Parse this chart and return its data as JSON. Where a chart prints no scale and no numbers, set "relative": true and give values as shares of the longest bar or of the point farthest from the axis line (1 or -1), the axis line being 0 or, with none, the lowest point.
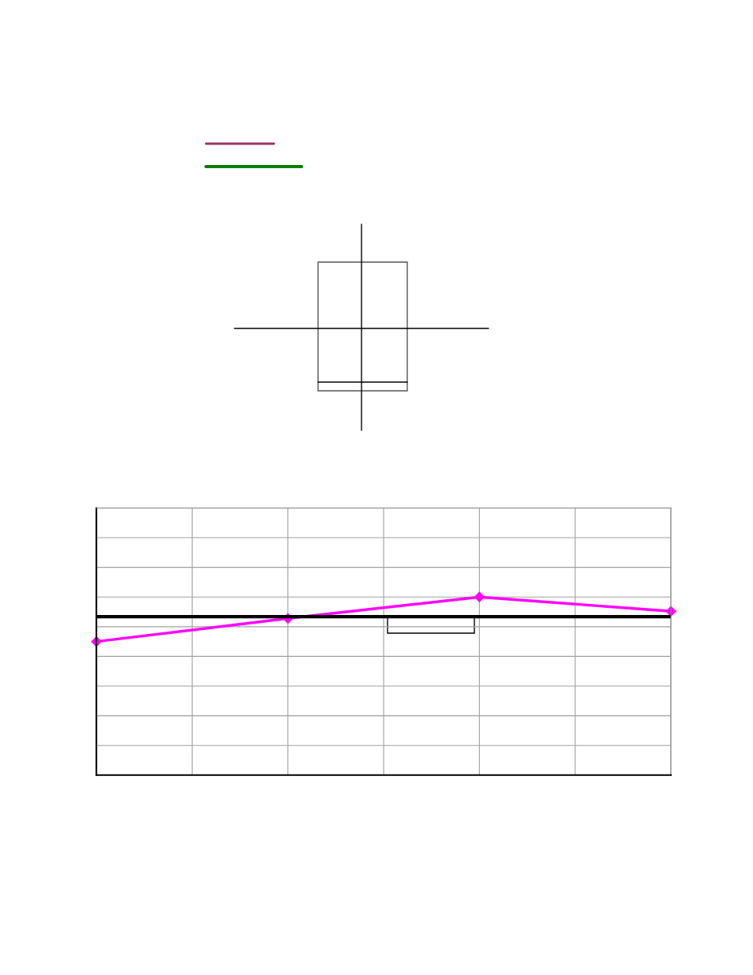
{
  "chart_data": {
    "type": "line",
    "relative": true,
    "categories": [
      null,
      null,
      null,
      null
    ],
    "series": [
      {
        "color": "#ff00ff",
        "values": [
          0.75,
          0.88,
          1,
          0.92
        ],
        "marker": "diamond"
      }
    ],
    "ref_lines": [
      {
        "axis": "y",
        "value": 0.89,
        "color": "#000000"
      }
    ],
    "grid": true
  }
}
